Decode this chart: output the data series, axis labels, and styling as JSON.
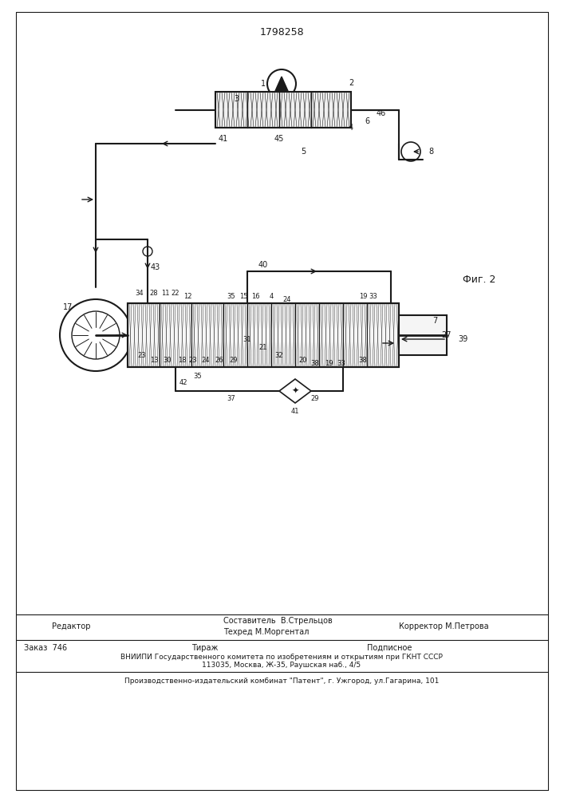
{
  "patent_number": "1798258",
  "fig_label": "Фиг. 2",
  "footer_line1_left": "Редактор",
  "footer_line1_center_top": "Составитель  В.Стрельцов",
  "footer_line1_center_bot": "Техред М.Моргентал",
  "footer_line1_right": "Корректор М.Петрова",
  "footer_line2_col1": "Заказ  746",
  "footer_line2_col2": "Тираж",
  "footer_line2_col3": "Подписное",
  "footer_line3": "ВНИИПИ Государственного комитета по изобретениям и открытиям при ГКНТ СССР",
  "footer_line4": "113035, Москва, Ж-35, Раушская наб., 4/5",
  "footer_line5": "Производственно-издательский комбинат \"Патент\", г. Ужгород, ул.Гагарина, 101",
  "bg_color": "#ffffff",
  "line_color": "#1a1a1a",
  "text_color": "#1a1a1a"
}
